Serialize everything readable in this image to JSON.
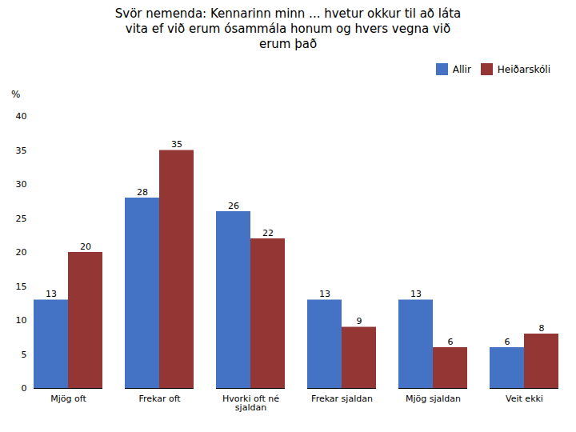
{
  "chart_data": {
    "type": "bar",
    "title": "Svör nemenda: Kennarinn minn ... hvetur okkur til að láta\nvita ef við erum ósammála honum og hvers vegna við\nerum það",
    "ylabel": "%",
    "categories": [
      "Mjög oft",
      "Frekar oft",
      "Hvorki oft né\nsjaldan",
      "Frekar sjaldan",
      "Mjög sjaldan",
      "Veit ekki"
    ],
    "series": [
      {
        "name": "Allir",
        "color": "#4472C4",
        "values": [
          13,
          28,
          26,
          13,
          13,
          6
        ]
      },
      {
        "name": "Heiðarskóli",
        "color": "#943634",
        "values": [
          20,
          35,
          22,
          9,
          6,
          8
        ]
      }
    ],
    "ylim": [
      0,
      40
    ],
    "yticks": [
      0,
      5,
      10,
      15,
      20,
      25,
      30,
      35,
      40
    ],
    "grid": false,
    "legend": "upper right",
    "data_labels": true
  }
}
